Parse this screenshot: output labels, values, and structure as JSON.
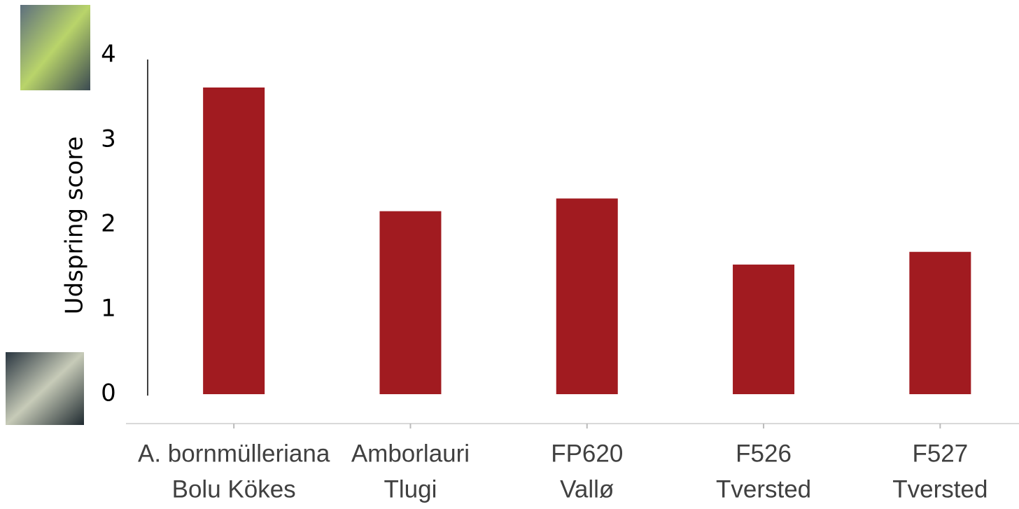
{
  "chart_data": {
    "type": "bar",
    "ylabel": "Udspring score",
    "categories": [
      [
        "A. bornmülleriana",
        "Bolu Kökes"
      ],
      [
        "Amborlauri",
        "Tlugi"
      ],
      [
        "FP620",
        "Vallø"
      ],
      [
        "F526",
        "Tversted"
      ],
      [
        "F527",
        "Tversted"
      ]
    ],
    "values": [
      3.62,
      2.16,
      2.31,
      1.53,
      1.68
    ],
    "color": "#a11b20",
    "ylim": [
      0,
      4
    ],
    "yticks": [
      0,
      1,
      2,
      3,
      4
    ],
    "grid": false
  }
}
